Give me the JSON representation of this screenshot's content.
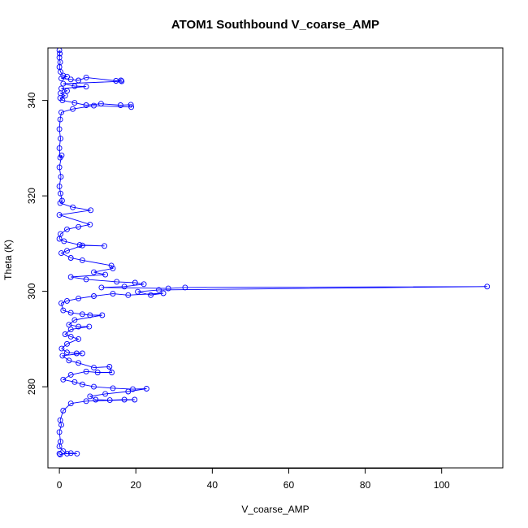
{
  "chart_data": {
    "type": "scatter",
    "title": "ATOM1 Southbound V_coarse_AMP",
    "xlabel": "V_coarse_AMP",
    "ylabel": "Theta (K)",
    "xlim": [
      -3,
      116
    ],
    "ylim": [
      263,
      351
    ],
    "xticks": [
      0,
      20,
      40,
      60,
      80,
      100
    ],
    "yticks": [
      280,
      300,
      320,
      340
    ],
    "color": "#0000ff",
    "marker": "open-circle",
    "connected": true,
    "series": [
      {
        "values": [
          [
            0.0,
            350.5
          ],
          [
            0.1,
            349.8
          ],
          [
            0.0,
            349.0
          ],
          [
            0.2,
            348.0
          ],
          [
            0.0,
            347.0
          ],
          [
            0.3,
            346.0
          ],
          [
            1.0,
            345.2
          ],
          [
            2.0,
            345.0
          ],
          [
            0.5,
            344.6
          ],
          [
            3.0,
            344.4
          ],
          [
            5.0,
            344.2
          ],
          [
            7.0,
            344.8
          ],
          [
            14.8,
            344.1
          ],
          [
            16.1,
            344.2
          ],
          [
            16.3,
            344.0
          ],
          [
            1.0,
            343.5
          ],
          [
            4.0,
            343.0
          ],
          [
            7.0,
            342.9
          ],
          [
            0.5,
            342.5
          ],
          [
            2.0,
            342.0
          ],
          [
            0.3,
            341.5
          ],
          [
            1.5,
            341.0
          ],
          [
            0.2,
            340.5
          ],
          [
            0.8,
            340.0
          ],
          [
            4.0,
            339.5
          ],
          [
            7.0,
            339.0
          ],
          [
            10.9,
            339.3
          ],
          [
            16.0,
            339.0
          ],
          [
            18.7,
            339.1
          ],
          [
            18.8,
            338.6
          ],
          [
            9.0,
            338.9
          ],
          [
            3.5,
            338.2
          ],
          [
            0.5,
            337.5
          ],
          [
            0.2,
            336.0
          ],
          [
            0.0,
            334.0
          ],
          [
            0.3,
            332.0
          ],
          [
            0.0,
            330.0
          ],
          [
            0.2,
            328.0
          ],
          [
            0.6,
            328.5
          ],
          [
            0.0,
            326.0
          ],
          [
            0.4,
            324.0
          ],
          [
            0.0,
            322.0
          ],
          [
            0.3,
            320.5
          ],
          [
            0.7,
            319.0
          ],
          [
            0.2,
            318.5
          ],
          [
            3.5,
            317.6
          ],
          [
            8.2,
            317.0
          ],
          [
            0.0,
            316.0
          ],
          [
            8.0,
            314.0
          ],
          [
            5.0,
            313.5
          ],
          [
            2.0,
            313.0
          ],
          [
            0.3,
            312.0
          ],
          [
            0.0,
            311.0
          ],
          [
            1.2,
            310.5
          ],
          [
            5.3,
            309.7
          ],
          [
            11.8,
            309.5
          ],
          [
            6.0,
            309.6
          ],
          [
            2.0,
            308.5
          ],
          [
            0.5,
            308.0
          ],
          [
            3.0,
            307.0
          ],
          [
            6.0,
            306.5
          ],
          [
            13.6,
            305.4
          ],
          [
            14.0,
            304.8
          ],
          [
            9.0,
            304.0
          ],
          [
            12.0,
            303.5
          ],
          [
            3.0,
            303.0
          ],
          [
            7.0,
            302.5
          ],
          [
            15.0,
            302.0
          ],
          [
            19.8,
            301.8
          ],
          [
            22.1,
            301.5
          ],
          [
            17.0,
            301.0
          ],
          [
            11.0,
            300.8
          ],
          [
            28.5,
            300.6
          ],
          [
            32.9,
            300.8
          ],
          [
            111.9,
            301.0
          ],
          [
            26.0,
            300.3
          ],
          [
            20.5,
            299.9
          ],
          [
            23.9,
            299.2
          ],
          [
            27.2,
            299.6
          ],
          [
            18.0,
            299.2
          ],
          [
            14.0,
            299.5
          ],
          [
            9.0,
            299.0
          ],
          [
            5.0,
            298.5
          ],
          [
            2.0,
            298.0
          ],
          [
            0.5,
            297.5
          ],
          [
            1.0,
            296.0
          ],
          [
            3.0,
            295.5
          ],
          [
            6.0,
            295.2
          ],
          [
            8.0,
            295.0
          ],
          [
            11.2,
            295.0
          ],
          [
            4.0,
            294.0
          ],
          [
            2.5,
            293.0
          ],
          [
            5.0,
            292.6
          ],
          [
            7.8,
            292.6
          ],
          [
            3.0,
            292.0
          ],
          [
            1.5,
            291.0
          ],
          [
            3.0,
            290.5
          ],
          [
            5.0,
            290.0
          ],
          [
            2.0,
            289.0
          ],
          [
            0.6,
            288.0
          ],
          [
            2.0,
            287.2
          ],
          [
            4.5,
            287.0
          ],
          [
            6.0,
            287.0
          ],
          [
            0.8,
            286.5
          ],
          [
            2.5,
            285.5
          ],
          [
            5.0,
            285.0
          ],
          [
            9.0,
            284.0
          ],
          [
            13.1,
            284.2
          ],
          [
            13.7,
            283.0
          ],
          [
            10.0,
            283.0
          ],
          [
            7.0,
            283.2
          ],
          [
            3.0,
            282.5
          ],
          [
            1.0,
            281.5
          ],
          [
            4.0,
            281.0
          ],
          [
            6.0,
            280.5
          ],
          [
            9.0,
            280.0
          ],
          [
            14.0,
            279.7
          ],
          [
            19.2,
            279.5
          ],
          [
            22.8,
            279.6
          ],
          [
            18.0,
            279.0
          ],
          [
            12.0,
            278.5
          ],
          [
            8.0,
            278.0
          ],
          [
            9.5,
            277.3
          ],
          [
            13.2,
            277.2
          ],
          [
            17.0,
            277.3
          ],
          [
            19.7,
            277.3
          ],
          [
            7.0,
            277.0
          ],
          [
            3.0,
            276.5
          ],
          [
            1.0,
            275.0
          ],
          [
            0.2,
            273.0
          ],
          [
            0.5,
            272.0
          ],
          [
            0.0,
            270.5
          ],
          [
            0.3,
            268.5
          ],
          [
            0.0,
            267.5
          ],
          [
            1.0,
            266.5
          ],
          [
            2.0,
            266.0
          ],
          [
            4.6,
            266.0
          ],
          [
            3.0,
            266.1
          ],
          [
            0.2,
            265.8
          ],
          [
            0.0,
            266.0
          ]
        ]
      }
    ]
  }
}
